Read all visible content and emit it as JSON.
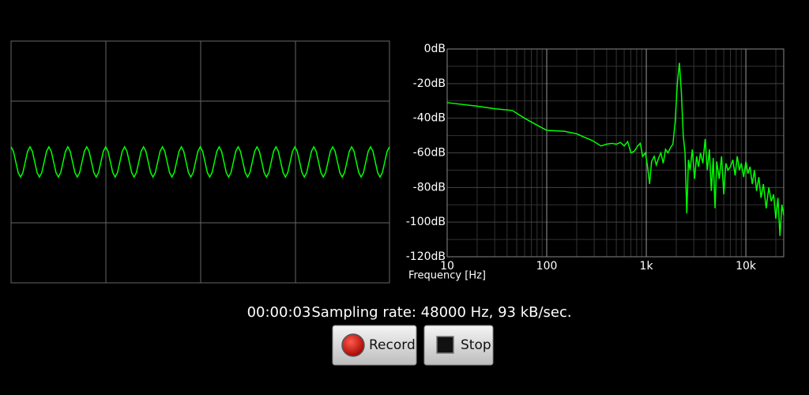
{
  "chart_data": [
    {
      "type": "line",
      "color": "#00ff00",
      "ylim": [
        -1,
        1
      ],
      "values": [
        0.125,
        0.088,
        0,
        -0.088,
        -0.125,
        -0.088,
        0,
        0.088,
        0.125,
        0.088,
        0,
        -0.088,
        -0.125,
        -0.088,
        0,
        0.088,
        0.125,
        0.088,
        0,
        -0.088,
        -0.125,
        -0.088,
        0,
        0.088,
        0.125,
        0.088,
        0,
        -0.088,
        -0.125,
        -0.088,
        0,
        0.088,
        0.125,
        0.088,
        0,
        -0.088,
        -0.125,
        -0.088,
        0,
        0.088,
        0.125,
        0.088,
        0,
        -0.088,
        -0.125,
        -0.088,
        0,
        0.088,
        0.125,
        0.088,
        0,
        -0.088,
        -0.125,
        -0.088,
        0,
        0.088,
        0.125,
        0.088,
        0,
        -0.088,
        -0.125,
        -0.088,
        0,
        0.088,
        0.125,
        0.088,
        0,
        -0.088,
        -0.125,
        -0.088,
        0,
        0.088,
        0.125,
        0.088,
        0,
        -0.088,
        -0.125,
        -0.088,
        0,
        0.088,
        0.125,
        0.088,
        0,
        -0.088,
        -0.125,
        -0.088,
        0,
        0.088,
        0.125,
        0.088,
        0,
        -0.088,
        -0.125,
        -0.088,
        0,
        0.088,
        0.125,
        0.088,
        0,
        -0.088,
        -0.125,
        -0.088,
        0,
        0.088,
        0.125,
        0.088,
        0,
        -0.088,
        -0.125,
        -0.088,
        0,
        0.088,
        0.125,
        0.088,
        0,
        -0.088,
        -0.125,
        -0.088,
        0,
        0.088,
        0.125,
        0.088,
        0,
        -0.088,
        -0.125,
        -0.088,
        0,
        0.088,
        0.125,
        0.088,
        0,
        -0.088,
        -0.125,
        -0.088,
        0,
        0.088,
        0.125,
        0.088,
        0,
        -0.088,
        -0.125,
        -0.088,
        0,
        0.088,
        0.125,
        0.088,
        0,
        -0.088,
        -0.125,
        -0.088,
        0,
        0.088,
        0.125,
        0.088,
        0,
        -0.088,
        -0.125,
        -0.088,
        0,
        0.088,
        0.125
      ]
    },
    {
      "type": "line",
      "color": "#00ff00",
      "log_x": true,
      "xlabel": "Frequency [Hz]",
      "xlim": [
        10,
        24000
      ],
      "ylim": [
        -120,
        0
      ],
      "xticks": [
        10,
        100,
        {
          "value": 1000,
          "label": "1k"
        },
        {
          "value": 10000,
          "label": "10k"
        }
      ],
      "xgrid_minor": [
        20,
        30,
        40,
        50,
        60,
        70,
        80,
        90,
        200,
        300,
        400,
        500,
        600,
        700,
        800,
        900,
        2000,
        3000,
        4000,
        5000,
        6000,
        7000,
        8000,
        9000,
        20000
      ],
      "yticks": [
        {
          "value": 0,
          "label": "0dB"
        },
        {
          "value": -20,
          "label": "-20dB"
        },
        {
          "value": -40,
          "label": "-40dB"
        },
        {
          "value": -60,
          "label": "-60dB"
        },
        {
          "value": -80,
          "label": "-80dB"
        },
        {
          "value": -100,
          "label": "-100dB"
        },
        {
          "value": -120,
          "label": "-120dB"
        }
      ],
      "ygrid_minor": [
        -10,
        -30,
        -50,
        -70,
        -90,
        -110
      ],
      "x": [
        10,
        20,
        30,
        45,
        60,
        80,
        100,
        150,
        200,
        240,
        290,
        350,
        400,
        450,
        500,
        550,
        600,
        650,
        700,
        760,
        820,
        870,
        920,
        980,
        1030,
        1080,
        1130,
        1200,
        1260,
        1330,
        1400,
        1480,
        1560,
        1650,
        1750,
        1850,
        1950,
        2050,
        2150,
        2250,
        2350,
        2450,
        2550,
        2650,
        2750,
        2900,
        3050,
        3200,
        3350,
        3500,
        3700,
        3900,
        4100,
        4300,
        4500,
        4700,
        4900,
        5100,
        5400,
        5700,
        6000,
        6300,
        6600,
        7000,
        7400,
        7800,
        8200,
        8600,
        9000,
        9500,
        10000,
        10500,
        11000,
        11600,
        12200,
        12800,
        13500,
        14200,
        15000,
        16000,
        17000,
        18000,
        19000,
        20000,
        21000,
        22000,
        23000,
        24000
      ],
      "values": [
        -31,
        -33,
        -34.5,
        -35.5,
        -40,
        -44,
        -47,
        -47.5,
        -49,
        -51,
        -53,
        -56,
        -55,
        -54.5,
        -55,
        -54,
        -56,
        -53.5,
        -60,
        -59,
        -56,
        -54.5,
        -62,
        -60,
        -68,
        -78,
        -65,
        -62,
        -67,
        -63,
        -60,
        -66,
        -58,
        -60,
        -57,
        -55,
        -42,
        -20,
        -8,
        -25,
        -50,
        -60,
        -95,
        -64,
        -70,
        -58,
        -75,
        -62,
        -68,
        -60,
        -66,
        -52,
        -70,
        -58,
        -82,
        -63,
        -92,
        -65,
        -75,
        -62,
        -84,
        -66,
        -70,
        -68,
        -64,
        -73,
        -62,
        -70,
        -66,
        -74,
        -65,
        -72,
        -68,
        -78,
        -70,
        -82,
        -74,
        -86,
        -78,
        -92,
        -80,
        -88,
        -84,
        -98,
        -86,
        -108,
        -90,
        -96
      ]
    }
  ],
  "status": {
    "time": "00:00:03",
    "info": "Sampling rate: 48000 Hz, 93 kB/sec."
  },
  "buttons": [
    "Record",
    "Stop"
  ]
}
